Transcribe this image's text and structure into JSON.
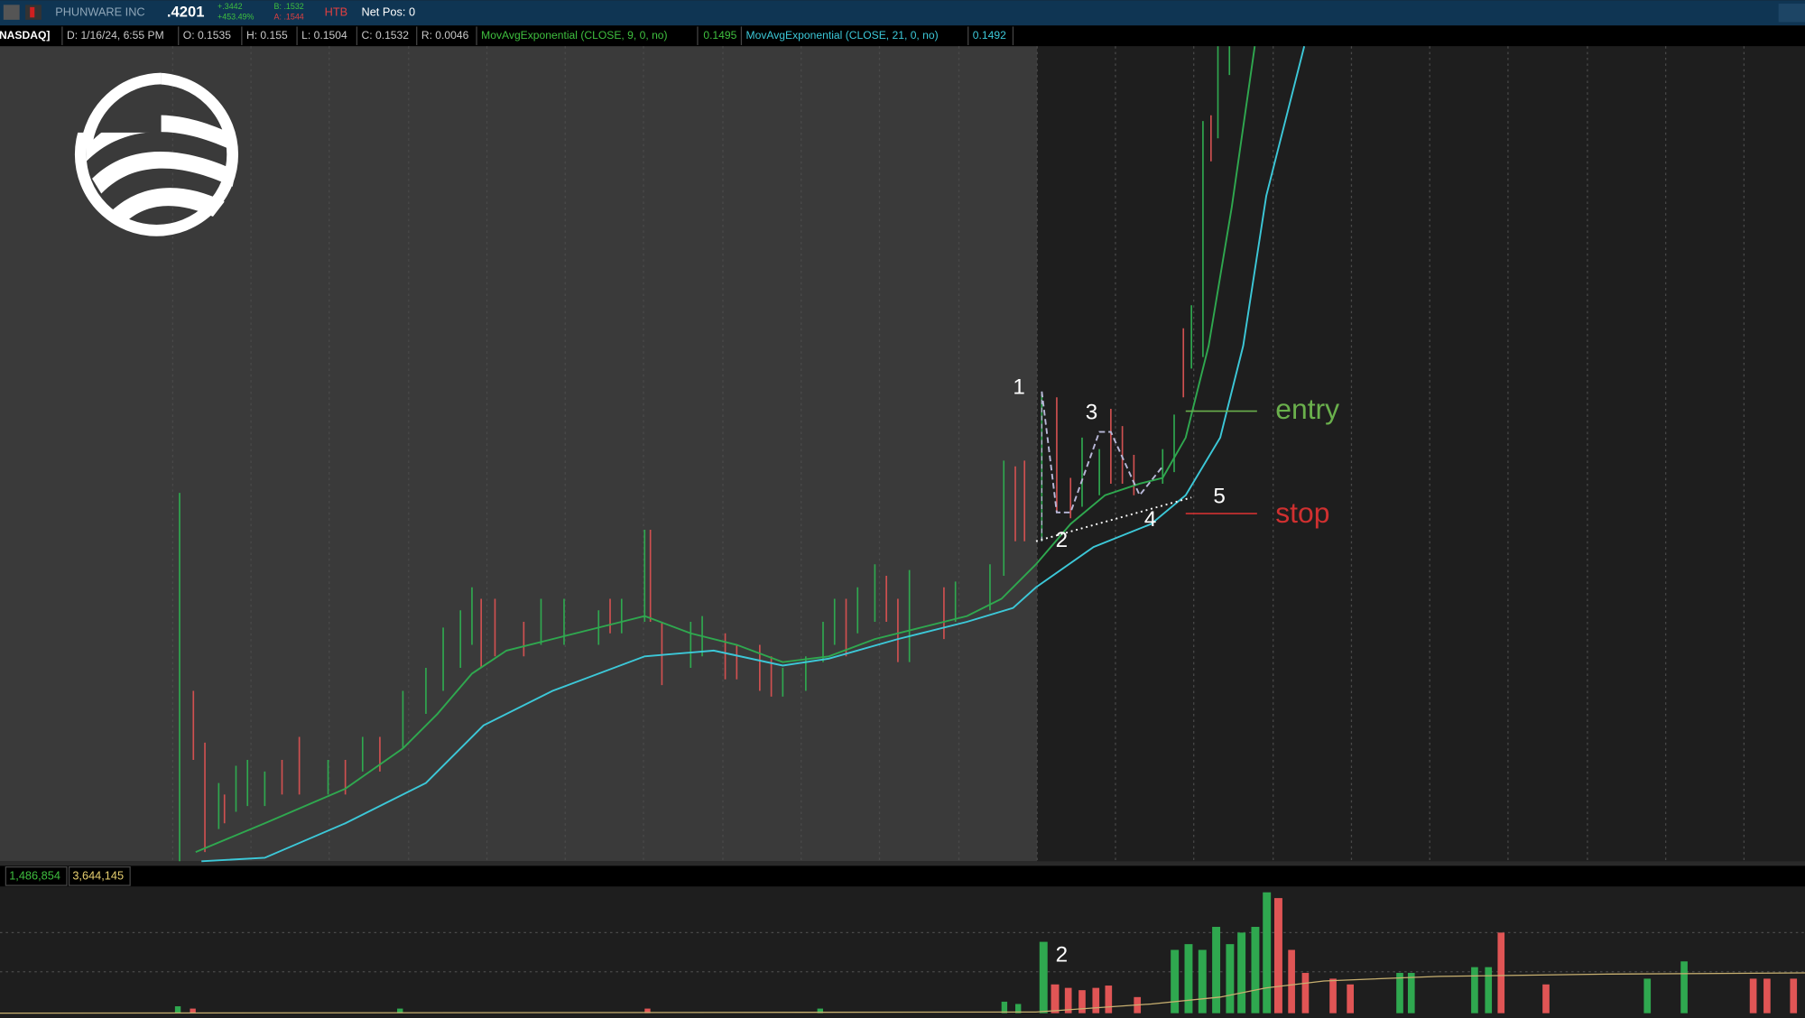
{
  "header": {
    "symbol_name": "PHUNWARE INC",
    "last": ".4201",
    "change": "+.3442",
    "change_pct": "+453.49%",
    "bid": "B: .1532",
    "ask": "A: .1544",
    "htb": "HTB",
    "net_pos": "Net Pos: 0"
  },
  "study_bar": {
    "exchange": "[NASDAQ]",
    "date": "D: 1/16/24, 6:55 PM",
    "open": "O: 0.1535",
    "high": "H: 0.155",
    "low": "L: 0.1504",
    "close": "C: 0.1532",
    "range": "R: 0.0046",
    "ema9_label": "MovAvgExponential (CLOSE, 9, 0, no)",
    "ema9_value": "0.1495",
    "ema21_label": "MovAvgExponential (CLOSE, 21, 0, no)",
    "ema21_value": "0.1492"
  },
  "annotations": {
    "p1": "1",
    "p2": "2",
    "p3": "3",
    "p4": "4",
    "p5": "5",
    "entry": "entry",
    "stop": "stop"
  },
  "volume_pane": {
    "volume": "1,486,854",
    "volume_avg": "3,644,145",
    "marker": "2"
  }
}
